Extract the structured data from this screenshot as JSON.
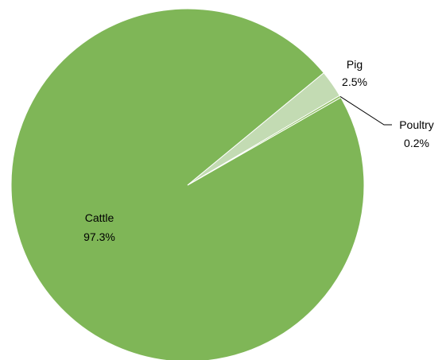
{
  "chart_data": {
    "type": "pie",
    "title": "",
    "categories": [
      "Cattle",
      "Pig",
      "Poultry"
    ],
    "values": [
      97.3,
      2.5,
      0.2
    ],
    "value_labels": [
      "97.3%",
      "2.5%",
      "0.2%"
    ],
    "colors": [
      "#7fb657",
      "#c3dbb3",
      "#90c064"
    ],
    "legend": "none",
    "label_style": "category and percent on slices"
  }
}
